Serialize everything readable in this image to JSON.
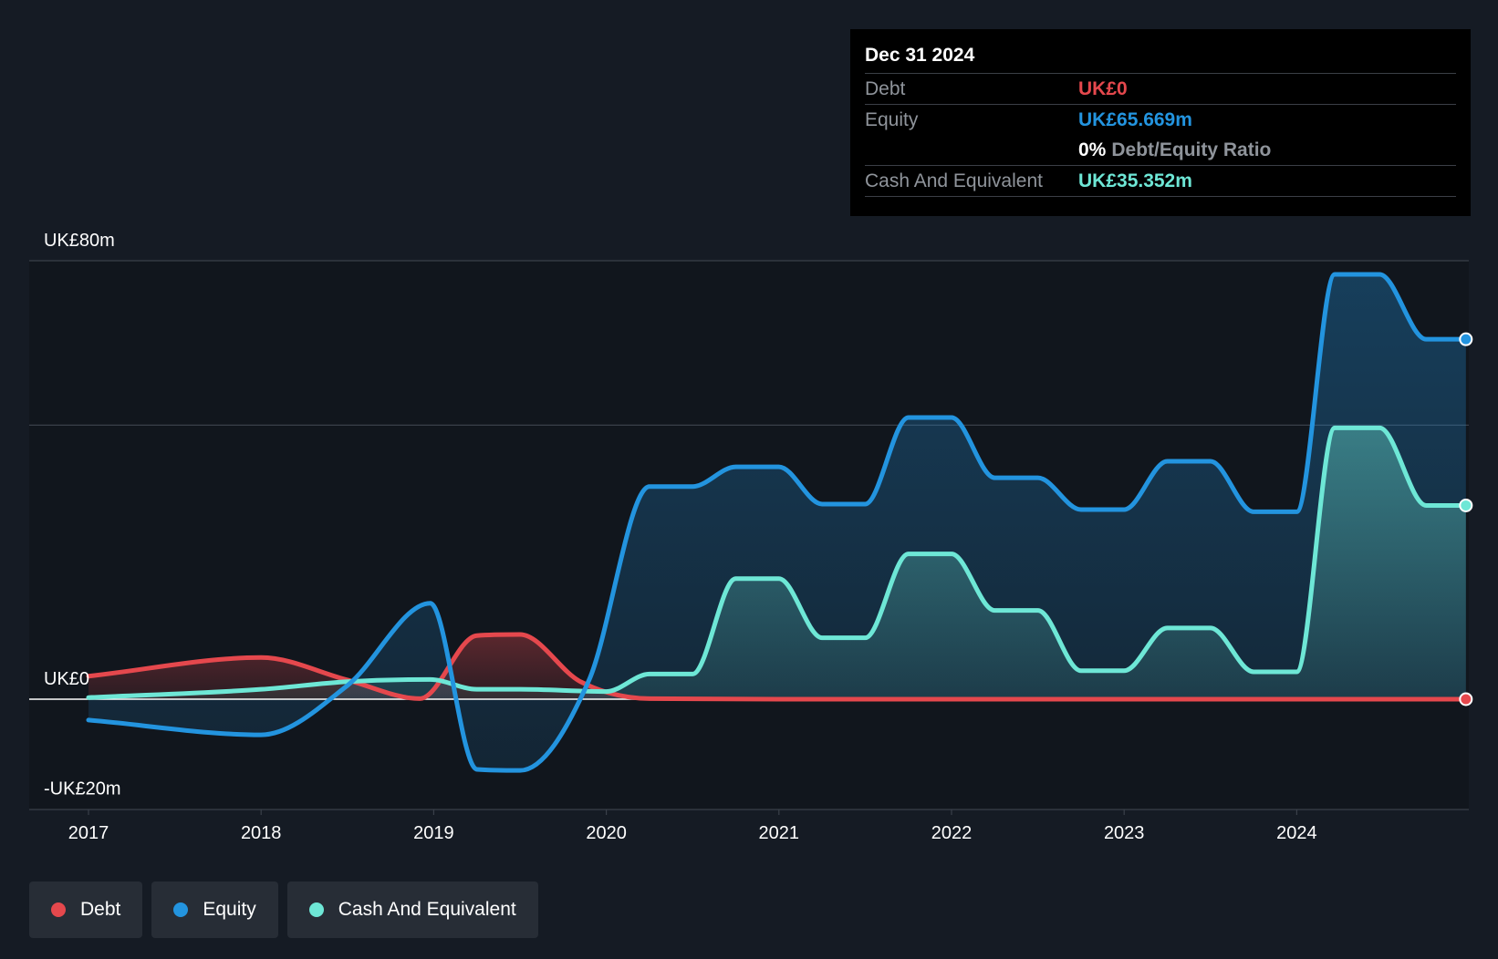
{
  "tooltip": {
    "date": "Dec 31 2024",
    "rows": [
      {
        "label": "Debt",
        "value": "UK£0",
        "color": "#e5484d"
      },
      {
        "label": "Equity",
        "value": "UK£65.669m",
        "color": "#2394df"
      },
      {
        "ratio_value": "0%",
        "ratio_label": "Debt/Equity Ratio"
      },
      {
        "label": "Cash And Equivalent",
        "value": "UK£35.352m",
        "color": "#6ee7d6"
      }
    ]
  },
  "legend": [
    {
      "label": "Debt",
      "color": "#e5484d"
    },
    {
      "label": "Equity",
      "color": "#2394df"
    },
    {
      "label": "Cash And Equivalent",
      "color": "#6ee7d6"
    }
  ],
  "chart_data": {
    "type": "area",
    "title": "",
    "xlabel": "",
    "ylabel": "",
    "y_tick_labels": [
      {
        "value": 80,
        "label": "UK£80m"
      },
      {
        "value": 0,
        "label": "UK£0"
      },
      {
        "value": -20,
        "label": "-UK£20m"
      }
    ],
    "ylim": [
      -20,
      80
    ],
    "xlim": [
      2016.67,
      2025.0
    ],
    "x_ticks": [
      2017,
      2018,
      2019,
      2020,
      2021,
      2022,
      2023,
      2024
    ],
    "gridlines": [
      80,
      50
    ],
    "legend_position": "bottom-left",
    "series": [
      {
        "name": "Debt",
        "color": "#e5484d",
        "points": [
          [
            2017.0,
            4.2
          ],
          [
            2018.0,
            7.6
          ],
          [
            2018.5,
            3.5
          ],
          [
            2018.92,
            0.1
          ],
          [
            2019.25,
            11.6
          ],
          [
            2019.5,
            11.8
          ],
          [
            2019.85,
            3.2
          ],
          [
            2020.25,
            0.1
          ],
          [
            2021.0,
            0.0
          ],
          [
            2022.0,
            0.0
          ],
          [
            2023.0,
            0.0
          ],
          [
            2024.0,
            0.0
          ],
          [
            2024.98,
            0.0
          ]
        ]
      },
      {
        "name": "Equity",
        "color": "#2394df",
        "points": [
          [
            2017.0,
            -3.8
          ],
          [
            2018.0,
            -6.5
          ],
          [
            2018.5,
            2.5
          ],
          [
            2018.98,
            17.5
          ],
          [
            2019.25,
            -12.8
          ],
          [
            2019.5,
            -13.0
          ],
          [
            2019.9,
            3.5
          ],
          [
            2020.25,
            38.8
          ],
          [
            2020.5,
            38.8
          ],
          [
            2020.75,
            42.4
          ],
          [
            2021.0,
            42.4
          ],
          [
            2021.25,
            35.6
          ],
          [
            2021.5,
            35.6
          ],
          [
            2021.75,
            51.4
          ],
          [
            2022.0,
            51.4
          ],
          [
            2022.25,
            40.4
          ],
          [
            2022.5,
            40.4
          ],
          [
            2022.75,
            34.6
          ],
          [
            2023.0,
            34.6
          ],
          [
            2023.25,
            43.4
          ],
          [
            2023.5,
            43.4
          ],
          [
            2023.75,
            34.2
          ],
          [
            2024.0,
            34.2
          ],
          [
            2024.22,
            77.5
          ],
          [
            2024.48,
            77.5
          ],
          [
            2024.75,
            65.669
          ],
          [
            2024.98,
            65.669
          ]
        ]
      },
      {
        "name": "Cash And Equivalent",
        "color": "#6ee7d6",
        "points": [
          [
            2017.0,
            0.3
          ],
          [
            2018.0,
            1.8
          ],
          [
            2018.5,
            3.2
          ],
          [
            2018.98,
            3.6
          ],
          [
            2019.25,
            1.8
          ],
          [
            2019.5,
            1.8
          ],
          [
            2020.0,
            1.4
          ],
          [
            2020.25,
            4.6
          ],
          [
            2020.5,
            4.6
          ],
          [
            2020.75,
            22.0
          ],
          [
            2021.0,
            22.0
          ],
          [
            2021.25,
            11.2
          ],
          [
            2021.5,
            11.2
          ],
          [
            2021.75,
            26.5
          ],
          [
            2022.0,
            26.5
          ],
          [
            2022.25,
            16.2
          ],
          [
            2022.5,
            16.2
          ],
          [
            2022.75,
            5.2
          ],
          [
            2023.0,
            5.2
          ],
          [
            2023.25,
            13.0
          ],
          [
            2023.5,
            13.0
          ],
          [
            2023.75,
            5.0
          ],
          [
            2024.0,
            5.0
          ],
          [
            2024.22,
            49.5
          ],
          [
            2024.48,
            49.5
          ],
          [
            2024.75,
            35.352
          ],
          [
            2024.98,
            35.352
          ]
        ]
      }
    ]
  }
}
